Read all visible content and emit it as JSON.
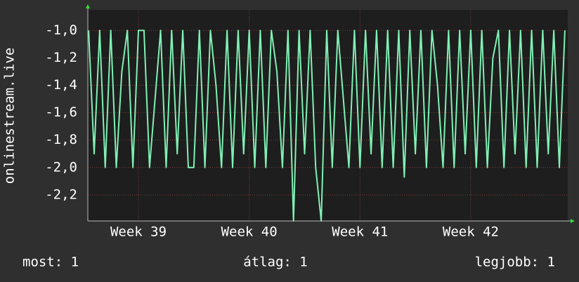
{
  "chart_data": {
    "type": "line",
    "y_label": "onlinestream.live",
    "xlim": [
      38.543,
      42.876
    ],
    "ylim": [
      -2.39,
      -0.85
    ],
    "xticks": [
      {
        "value": 39,
        "label": "Week 39"
      },
      {
        "value": 40,
        "label": "Week 40"
      },
      {
        "value": 41,
        "label": "Week 41"
      },
      {
        "value": 42,
        "label": "Week 42"
      }
    ],
    "yticks": [
      {
        "value": -1.0,
        "label": "-1,0"
      },
      {
        "value": -1.2,
        "label": "-1,2"
      },
      {
        "value": -1.4,
        "label": "-1,4"
      },
      {
        "value": -1.6,
        "label": "-1,6"
      },
      {
        "value": -1.8,
        "label": "-1,8"
      },
      {
        "value": -2.0,
        "label": "-2,0"
      },
      {
        "value": -2.2,
        "label": "-2,2"
      }
    ],
    "grid": true,
    "x": [
      38.55,
      38.6,
      38.65,
      38.7,
      38.75,
      38.8,
      38.85,
      38.9,
      38.95,
      39.0,
      39.05,
      39.1,
      39.15,
      39.2,
      39.25,
      39.3,
      39.35,
      39.4,
      39.45,
      39.5,
      39.55,
      39.6,
      39.65,
      39.7,
      39.75,
      39.8,
      39.85,
      39.9,
      39.95,
      40.0,
      40.05,
      40.1,
      40.15,
      40.2,
      40.25,
      40.3,
      40.35,
      40.4,
      40.45,
      40.5,
      40.55,
      40.6,
      40.65,
      40.7,
      40.75,
      40.8,
      40.85,
      40.9,
      40.95,
      41.0,
      41.05,
      41.1,
      41.15,
      41.2,
      41.25,
      41.3,
      41.35,
      41.4,
      41.45,
      41.5,
      41.55,
      41.6,
      41.65,
      41.7,
      41.75,
      41.8,
      41.85,
      41.9,
      41.95,
      42.0,
      42.05,
      42.1,
      42.15,
      42.2,
      42.25,
      42.3,
      42.35,
      42.4,
      42.45,
      42.5,
      42.55,
      42.6,
      42.65,
      42.7,
      42.75,
      42.8,
      42.85
    ],
    "series": [
      {
        "color": "#7ff0b4",
        "values": [
          -1,
          -1.9,
          -1,
          -2,
          -1,
          -2,
          -1.3,
          -1,
          -2,
          -1,
          -1,
          -2,
          -1.5,
          -1,
          -2,
          -1,
          -1.9,
          -1,
          -2,
          -2,
          -1,
          -2,
          -1,
          -1.4,
          -2,
          -1,
          -2,
          -1,
          -1.9,
          -1,
          -2,
          -1,
          -2,
          -1,
          -1.3,
          -2,
          -1,
          -2.39,
          -1,
          -1.9,
          -1,
          -2,
          -2.39,
          -1,
          -2,
          -1,
          -1.5,
          -2,
          -1,
          -2,
          -1,
          -1.9,
          -1,
          -2,
          -1,
          -2,
          -1,
          -2.07,
          -1,
          -1.9,
          -1,
          -2,
          -1,
          -1.4,
          -2,
          -1,
          -2,
          -1,
          -1.9,
          -1,
          -2,
          -1,
          -2,
          -1.2,
          -1,
          -2,
          -1,
          -1.9,
          -1,
          -2,
          -1,
          -2,
          -1,
          -1.9,
          -1,
          -2,
          -1
        ]
      }
    ],
    "stats": [
      "most: 1",
      "átlag: 1",
      "legjobb: 1"
    ]
  }
}
